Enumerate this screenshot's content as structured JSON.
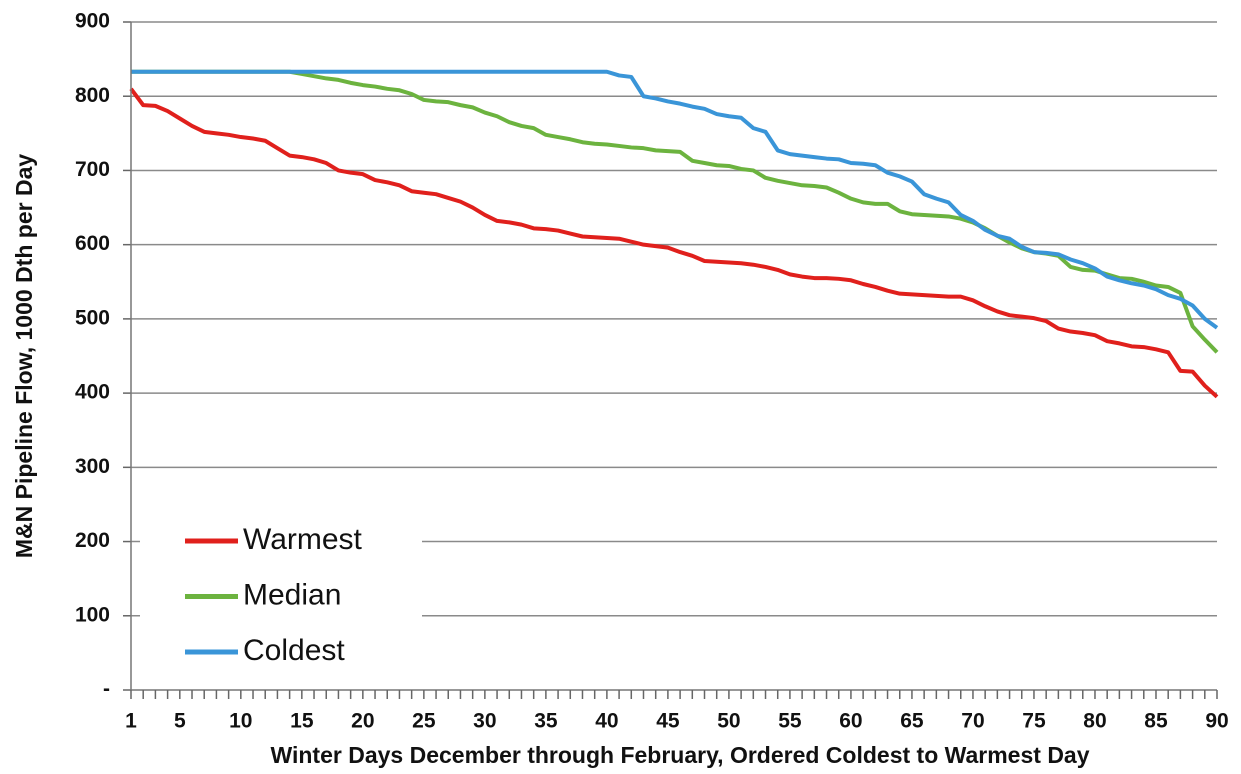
{
  "chart_data": {
    "type": "line",
    "xlabel": "Winter Days December through February, Ordered Coldest to Warmest Day",
    "ylabel": "M&N Pipeline Flow, 1000 Dth per Day",
    "x": [
      1,
      2,
      3,
      4,
      5,
      6,
      7,
      8,
      9,
      10,
      11,
      12,
      13,
      14,
      15,
      16,
      17,
      18,
      19,
      20,
      21,
      22,
      23,
      24,
      25,
      26,
      27,
      28,
      29,
      30,
      31,
      32,
      33,
      34,
      35,
      36,
      37,
      38,
      39,
      40,
      41,
      42,
      43,
      44,
      45,
      46,
      47,
      48,
      49,
      50,
      51,
      52,
      53,
      54,
      55,
      56,
      57,
      58,
      59,
      60,
      61,
      62,
      63,
      64,
      65,
      66,
      67,
      68,
      69,
      70,
      71,
      72,
      73,
      74,
      75,
      76,
      77,
      78,
      79,
      80,
      81,
      82,
      83,
      84,
      85,
      86,
      87,
      88,
      89,
      90
    ],
    "series": [
      {
        "name": "Warmest",
        "color": "#e0201c",
        "values": [
          810,
          788,
          787,
          780,
          770,
          760,
          752,
          750,
          748,
          745,
          743,
          740,
          730,
          720,
          718,
          715,
          710,
          700,
          697,
          695,
          687,
          684,
          680,
          672,
          670,
          668,
          663,
          658,
          650,
          640,
          632,
          630,
          627,
          622,
          621,
          619,
          615,
          611,
          610,
          609,
          608,
          604,
          600,
          598,
          596,
          590,
          585,
          578,
          577,
          576,
          575,
          573,
          570,
          566,
          560,
          557,
          555,
          555,
          554,
          552,
          547,
          543,
          538,
          534,
          533,
          532,
          531,
          530,
          530,
          525,
          517,
          510,
          505,
          503,
          501,
          497,
          487,
          483,
          481,
          478,
          470,
          467,
          463,
          462,
          459,
          455,
          430,
          429,
          410,
          395
        ]
      },
      {
        "name": "Median",
        "color": "#6cb33f",
        "values": [
          833,
          833,
          833,
          833,
          833,
          833,
          833,
          833,
          833,
          833,
          833,
          833,
          833,
          833,
          830,
          827,
          824,
          822,
          818,
          815,
          813,
          810,
          808,
          803,
          795,
          793,
          792,
          788,
          785,
          778,
          773,
          765,
          760,
          757,
          748,
          745,
          742,
          738,
          736,
          735,
          733,
          731,
          730,
          727,
          726,
          725,
          713,
          710,
          707,
          706,
          702,
          700,
          690,
          686,
          683,
          680,
          679,
          677,
          670,
          662,
          657,
          655,
          655,
          645,
          641,
          640,
          639,
          638,
          635,
          630,
          622,
          612,
          603,
          595,
          590,
          588,
          585,
          570,
          566,
          565,
          560,
          555,
          554,
          550,
          545,
          543,
          535,
          490,
          472,
          455
        ]
      },
      {
        "name": "Coldest",
        "color": "#3a95d8",
        "values": [
          833,
          833,
          833,
          833,
          833,
          833,
          833,
          833,
          833,
          833,
          833,
          833,
          833,
          833,
          833,
          833,
          833,
          833,
          833,
          833,
          833,
          833,
          833,
          833,
          833,
          833,
          833,
          833,
          833,
          833,
          833,
          833,
          833,
          833,
          833,
          833,
          833,
          833,
          833,
          833,
          828,
          826,
          800,
          797,
          793,
          790,
          786,
          783,
          776,
          773,
          771,
          757,
          752,
          727,
          722,
          720,
          718,
          716,
          715,
          710,
          709,
          707,
          697,
          692,
          685,
          668,
          662,
          657,
          640,
          632,
          620,
          612,
          608,
          597,
          590,
          589,
          587,
          580,
          575,
          568,
          557,
          552,
          548,
          545,
          540,
          532,
          527,
          518,
          500,
          488
        ]
      }
    ],
    "xlim": [
      1,
      90
    ],
    "xticks": [
      1,
      5,
      10,
      15,
      20,
      25,
      30,
      35,
      40,
      45,
      50,
      55,
      60,
      65,
      70,
      75,
      80,
      85,
      90
    ],
    "ylim": [
      0,
      900
    ],
    "yticks": [
      {
        "value": 0,
        "label": "-"
      },
      100,
      200,
      300,
      400,
      500,
      600,
      700,
      800,
      900
    ],
    "grid": true,
    "legend": "lower left"
  }
}
